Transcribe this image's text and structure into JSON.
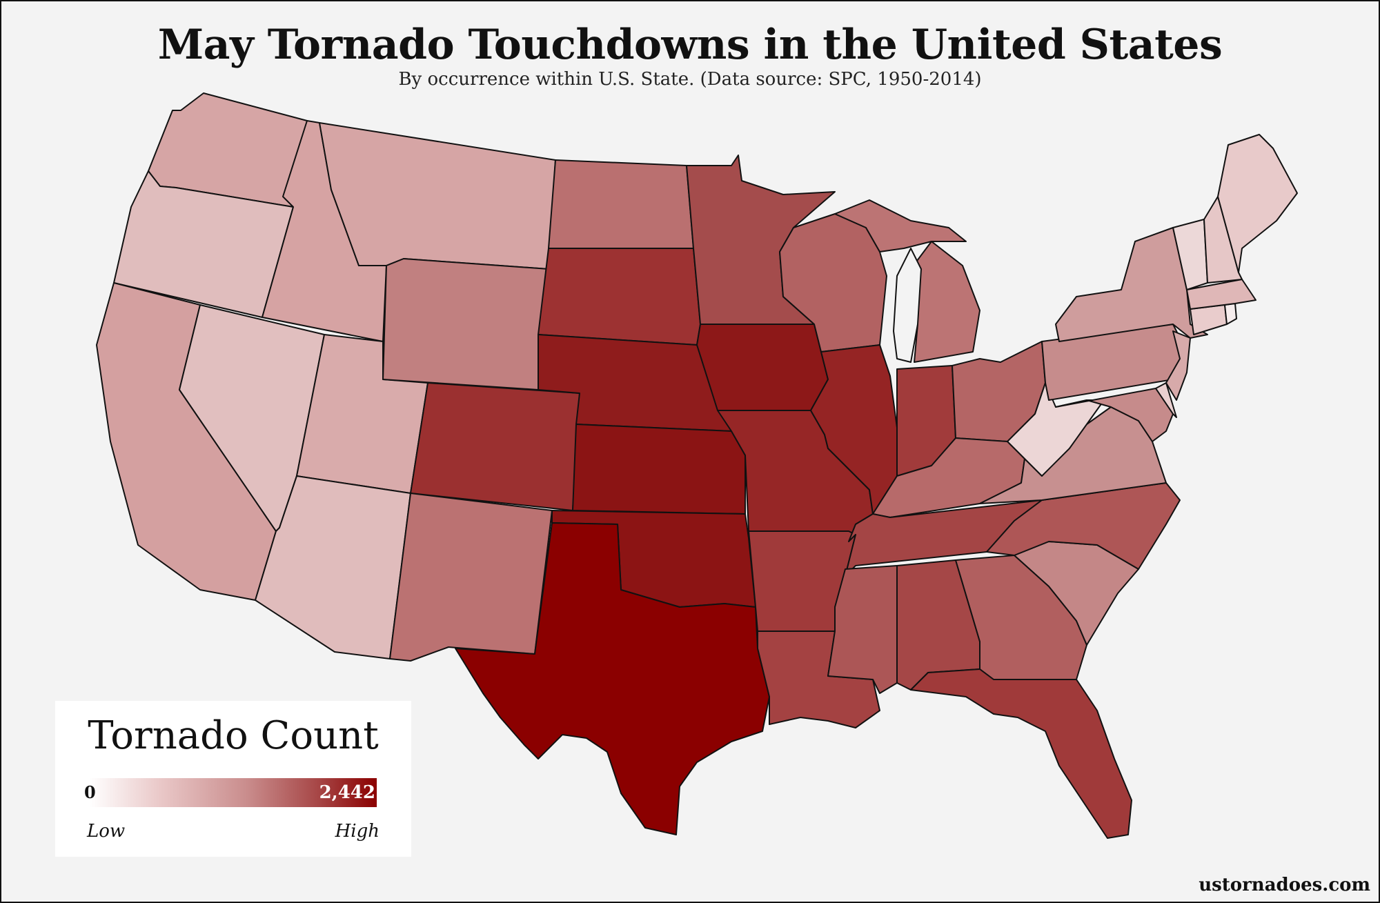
{
  "title": "May Tornado Touchdowns in the United States",
  "subtitle": "By occurrence within U.S. State. (Data source: SPC, 1950-2014)",
  "legend": {
    "title": "Tornado Count",
    "min_label": "0",
    "max_label": "2,442",
    "low_label": "Low",
    "high_label": "High",
    "min_color": "#ffffff",
    "max_color": "#8b0000"
  },
  "credit": "ustornadoes.com",
  "colors": {
    "background": "#f3f3f3",
    "border": "#111111"
  },
  "states": [
    {
      "name": "WA",
      "color": "#d6a5a5"
    },
    {
      "name": "OR",
      "color": "#e0bdbd"
    },
    {
      "name": "CA",
      "color": "#d4a0a0"
    },
    {
      "name": "ID",
      "color": "#d6a3a3"
    },
    {
      "name": "NV",
      "color": "#e1bfbf"
    },
    {
      "name": "UT",
      "color": "#d9abab"
    },
    {
      "name": "AZ",
      "color": "#e0bcbc"
    },
    {
      "name": "MT",
      "color": "#d6a5a5"
    },
    {
      "name": "WY",
      "color": "#c18080"
    },
    {
      "name": "CO",
      "color": "#9b3030"
    },
    {
      "name": "NM",
      "color": "#bb7272"
    },
    {
      "name": "ND",
      "color": "#ba7070"
    },
    {
      "name": "SD",
      "color": "#9d3232"
    },
    {
      "name": "NE",
      "color": "#8f1c1c"
    },
    {
      "name": "KS",
      "color": "#8b1414"
    },
    {
      "name": "OK",
      "color": "#8c1414"
    },
    {
      "name": "TX",
      "color": "#8b0000"
    },
    {
      "name": "MN",
      "color": "#a44c4c"
    },
    {
      "name": "IA",
      "color": "#8d1818"
    },
    {
      "name": "MO",
      "color": "#962626"
    },
    {
      "name": "AR",
      "color": "#a03a3a"
    },
    {
      "name": "LA",
      "color": "#a44242"
    },
    {
      "name": "WI",
      "color": "#b26262"
    },
    {
      "name": "IL",
      "color": "#952424"
    },
    {
      "name": "MI",
      "color": "#bc7474"
    },
    {
      "name": "IN",
      "color": "#a13b3b"
    },
    {
      "name": "OH",
      "color": "#b46565"
    },
    {
      "name": "KY",
      "color": "#b76a6a"
    },
    {
      "name": "TN",
      "color": "#a44545"
    },
    {
      "name": "MS",
      "color": "#ac5656"
    },
    {
      "name": "AL",
      "color": "#a54747"
    },
    {
      "name": "GA",
      "color": "#b15f5f"
    },
    {
      "name": "FL",
      "color": "#a03a3a"
    },
    {
      "name": "SC",
      "color": "#c48787"
    },
    {
      "name": "NC",
      "color": "#ae5656"
    },
    {
      "name": "VA",
      "color": "#c79090"
    },
    {
      "name": "WV",
      "color": "#ecd6d6"
    },
    {
      "name": "PA",
      "color": "#c68c8c"
    },
    {
      "name": "NY",
      "color": "#cf9d9d"
    },
    {
      "name": "MD",
      "color": "#c68b8b"
    },
    {
      "name": "DE",
      "color": "#ead0d0"
    },
    {
      "name": "NJ",
      "color": "#d7aaaa"
    },
    {
      "name": "CT",
      "color": "#e9cccc"
    },
    {
      "name": "RI",
      "color": "#f6eded"
    },
    {
      "name": "MA",
      "color": "#dfb7b7"
    },
    {
      "name": "VT",
      "color": "#ecd8d8"
    },
    {
      "name": "NH",
      "color": "#e6c7c7"
    },
    {
      "name": "ME",
      "color": "#e8caca"
    }
  ]
}
